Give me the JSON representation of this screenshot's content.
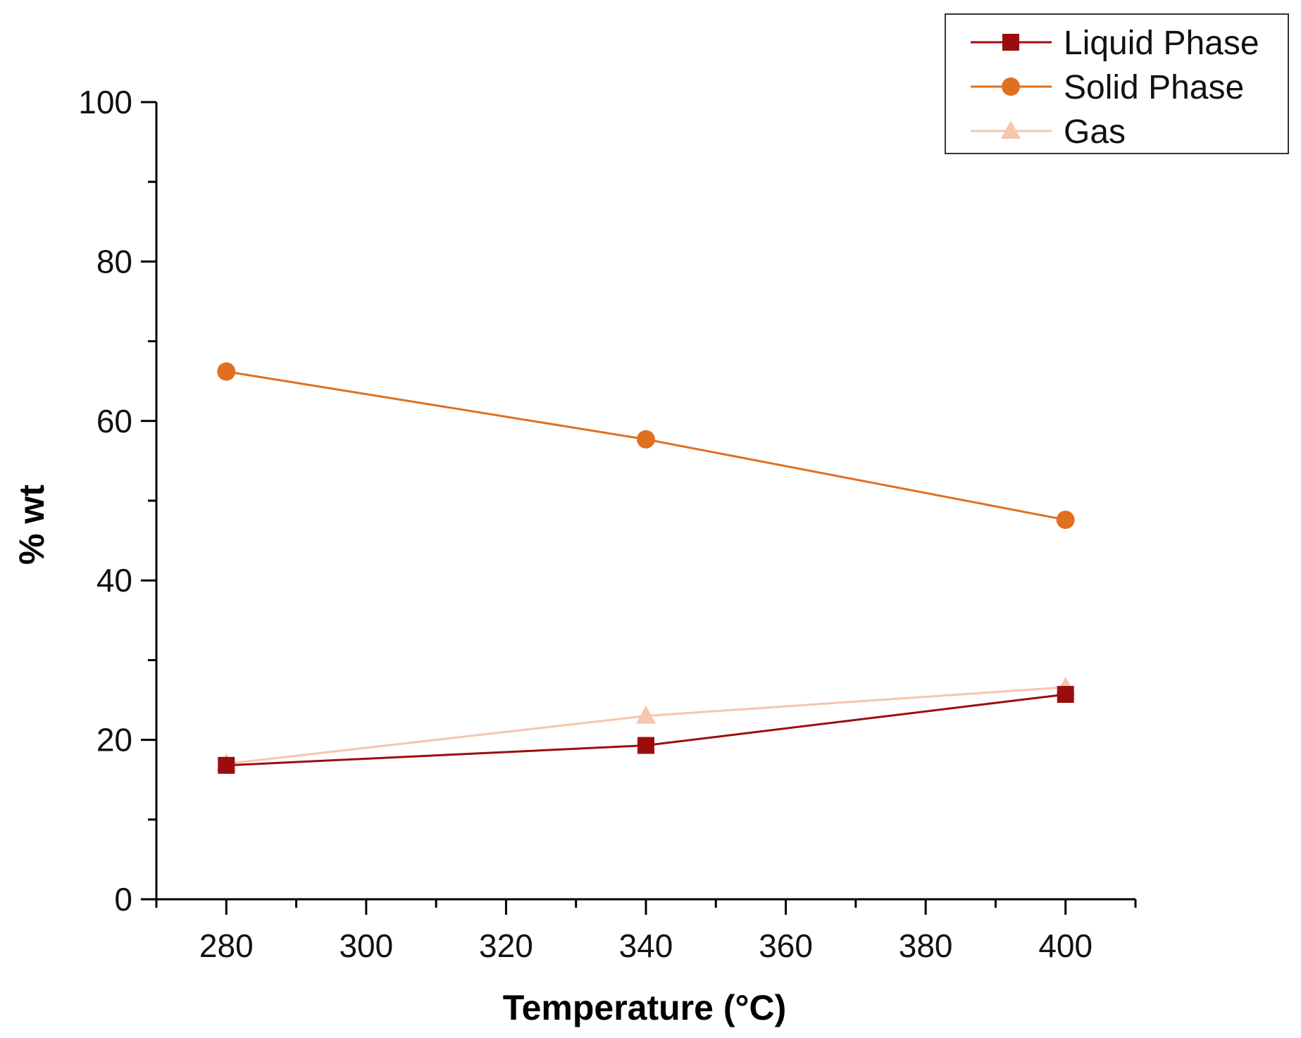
{
  "chart_data": {
    "type": "line",
    "title": "",
    "xlabel": "Temperature (°C)",
    "ylabel": "% wt",
    "xlim": [
      270,
      410
    ],
    "ylim": [
      0,
      100
    ],
    "x_ticks": [
      280,
      300,
      320,
      340,
      360,
      380,
      400
    ],
    "x_minor_ticks": [
      270,
      290,
      310,
      330,
      350,
      370,
      390,
      410
    ],
    "y_ticks": [
      0,
      20,
      40,
      60,
      80,
      100
    ],
    "y_minor_ticks": [
      10,
      30,
      50,
      70,
      90
    ],
    "grid": false,
    "legend_position": "top-right",
    "series": [
      {
        "name": "Liquid Phase",
        "marker": "square",
        "color": "#9b0d0d",
        "x": [
          280,
          340,
          400
        ],
        "values": [
          16.8,
          19.3,
          25.7
        ]
      },
      {
        "name": "Solid Phase",
        "marker": "circle",
        "color": "#e0701f",
        "x": [
          280,
          340,
          400
        ],
        "values": [
          66.2,
          57.7,
          47.6
        ]
      },
      {
        "name": "Gas",
        "marker": "triangle",
        "color": "#f6c6ad",
        "x": [
          280,
          340,
          400
        ],
        "values": [
          17.0,
          23.0,
          26.6
        ]
      }
    ]
  }
}
